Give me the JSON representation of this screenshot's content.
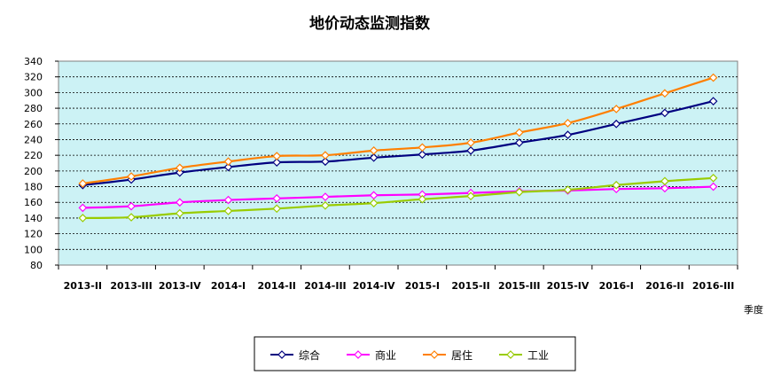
{
  "chart_data": {
    "type": "line",
    "title": "地价动态监测指数",
    "xlabel": "季度",
    "ylabel": "",
    "ylim": [
      80,
      340
    ],
    "yticks": [
      80,
      100,
      120,
      140,
      160,
      180,
      200,
      220,
      240,
      260,
      280,
      300,
      320,
      340
    ],
    "grid": "horizontal dashed",
    "legend_position": "bottom",
    "plot_background": "#ccf2f5",
    "categories": [
      "2013-II",
      "2013-III",
      "2013-IV",
      "2014-I",
      "2014-II",
      "2014-III",
      "2014-IV",
      "2015-I",
      "2015-II",
      "2015-III",
      "2015-IV",
      "2016-I",
      "2016-II",
      "2016-III"
    ],
    "series": [
      {
        "name": "综合",
        "color": "#000080",
        "values": [
          182,
          189,
          198,
          205,
          211,
          212,
          217,
          221,
          226,
          236,
          246,
          260,
          274,
          289
        ]
      },
      {
        "name": "商业",
        "color": "#ff00ff",
        "values": [
          153,
          155,
          160,
          163,
          165,
          167,
          169,
          170,
          172,
          174,
          175,
          177,
          178,
          180
        ]
      },
      {
        "name": "居住",
        "color": "#ff7f00",
        "values": [
          184,
          193,
          204,
          212,
          219,
          220,
          226,
          230,
          236,
          249,
          261,
          279,
          299,
          319
        ]
      },
      {
        "name": "工业",
        "color": "#99cc00",
        "values": [
          140,
          141,
          146,
          149,
          152,
          156,
          159,
          164,
          168,
          173,
          176,
          182,
          187,
          191
        ]
      }
    ]
  }
}
